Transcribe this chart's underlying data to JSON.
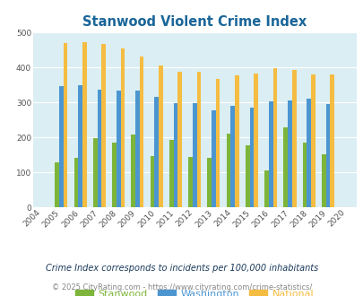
{
  "title": "Stanwood Violent Crime Index",
  "years": [
    "2004",
    "2005",
    "2006",
    "2007",
    "2008",
    "2009",
    "2010",
    "2011",
    "2012",
    "2013",
    "2014",
    "2015",
    "2016",
    "2017",
    "2018",
    "2019",
    "2020"
  ],
  "stanwood": [
    null,
    128,
    140,
    197,
    184,
    208,
    147,
    192,
    145,
    141,
    211,
    177,
    105,
    228,
    184,
    152,
    null
  ],
  "washington": [
    null,
    347,
    350,
    337,
    333,
    335,
    315,
    299,
    299,
    278,
    290,
    285,
    304,
    306,
    312,
    295,
    null
  ],
  "national": [
    null,
    470,
    473,
    467,
    455,
    432,
    405,
    388,
    387,
    368,
    377,
    383,
    398,
    394,
    380,
    380,
    null
  ],
  "stanwood_color": "#7db53a",
  "washington_color": "#4b96d1",
  "national_color": "#f5bc42",
  "bg_color": "#daeef3",
  "ylim": [
    0,
    500
  ],
  "yticks": [
    0,
    100,
    200,
    300,
    400,
    500
  ],
  "legend_labels": [
    "Stanwood",
    "Washington",
    "National"
  ],
  "footnote1": "Crime Index corresponds to incidents per 100,000 inhabitants",
  "footnote2": "© 2025 CityRating.com - https://www.cityrating.com/crime-statistics/",
  "title_color": "#1a6699",
  "footnote1_color": "#1a3a5c",
  "footnote2_color": "#888888",
  "url_color": "#4b96d1"
}
